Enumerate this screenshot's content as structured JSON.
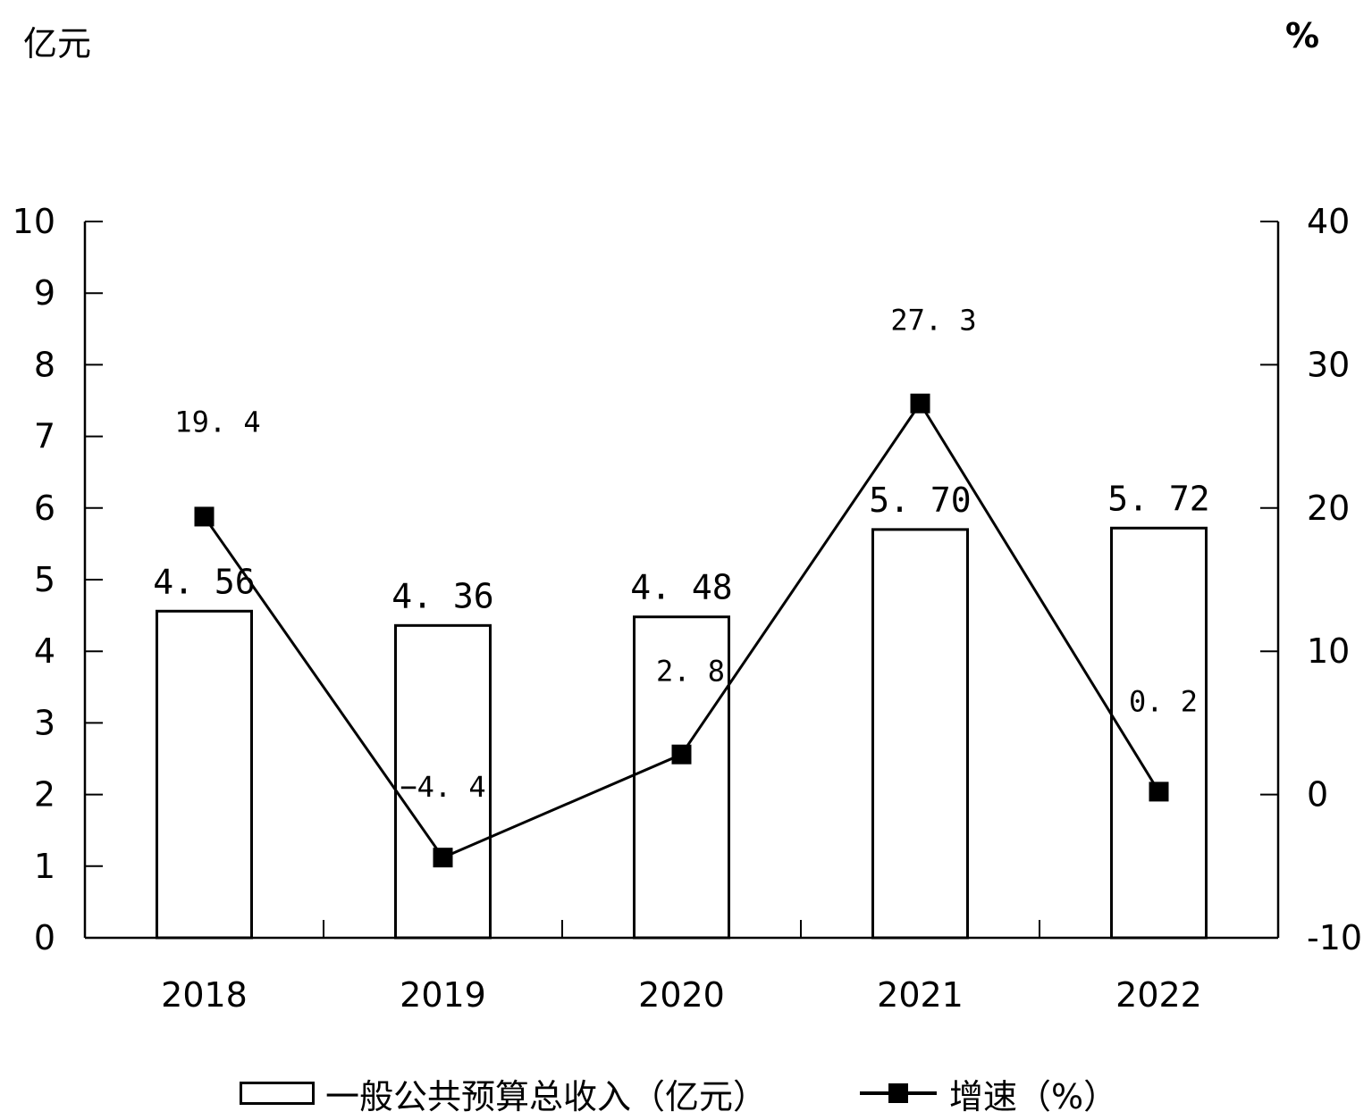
{
  "chart_data": {
    "type": "bar",
    "categories": [
      "2018",
      "2019",
      "2020",
      "2021",
      "2022"
    ],
    "left_axis": {
      "unit_label": "亿元",
      "ylim": [
        0,
        10
      ],
      "ticks": [
        "0",
        "1",
        "2",
        "3",
        "4",
        "5",
        "6",
        "7",
        "8",
        "9",
        "10"
      ]
    },
    "right_axis": {
      "unit_label": "%",
      "ylim": [
        -10,
        40
      ],
      "ticks": [
        "-10",
        "0",
        "10",
        "20",
        "30",
        "40"
      ]
    },
    "series": [
      {
        "name": "一般公共预算总收入（亿元）",
        "type": "bar",
        "axis": "left",
        "values": [
          4.56,
          4.36,
          4.48,
          5.7,
          5.72
        ],
        "labels": [
          "4. 56",
          "4. 36",
          "4. 48",
          "5. 70",
          "5. 72"
        ]
      },
      {
        "name": "增速（%）",
        "type": "line",
        "axis": "right",
        "values": [
          19.4,
          -4.4,
          2.8,
          27.3,
          0.2
        ],
        "labels": [
          "19. 4",
          "−4. 4",
          "2. 8",
          "27. 3",
          "0. 2"
        ]
      }
    ],
    "grid": false,
    "legend_position": "bottom"
  }
}
